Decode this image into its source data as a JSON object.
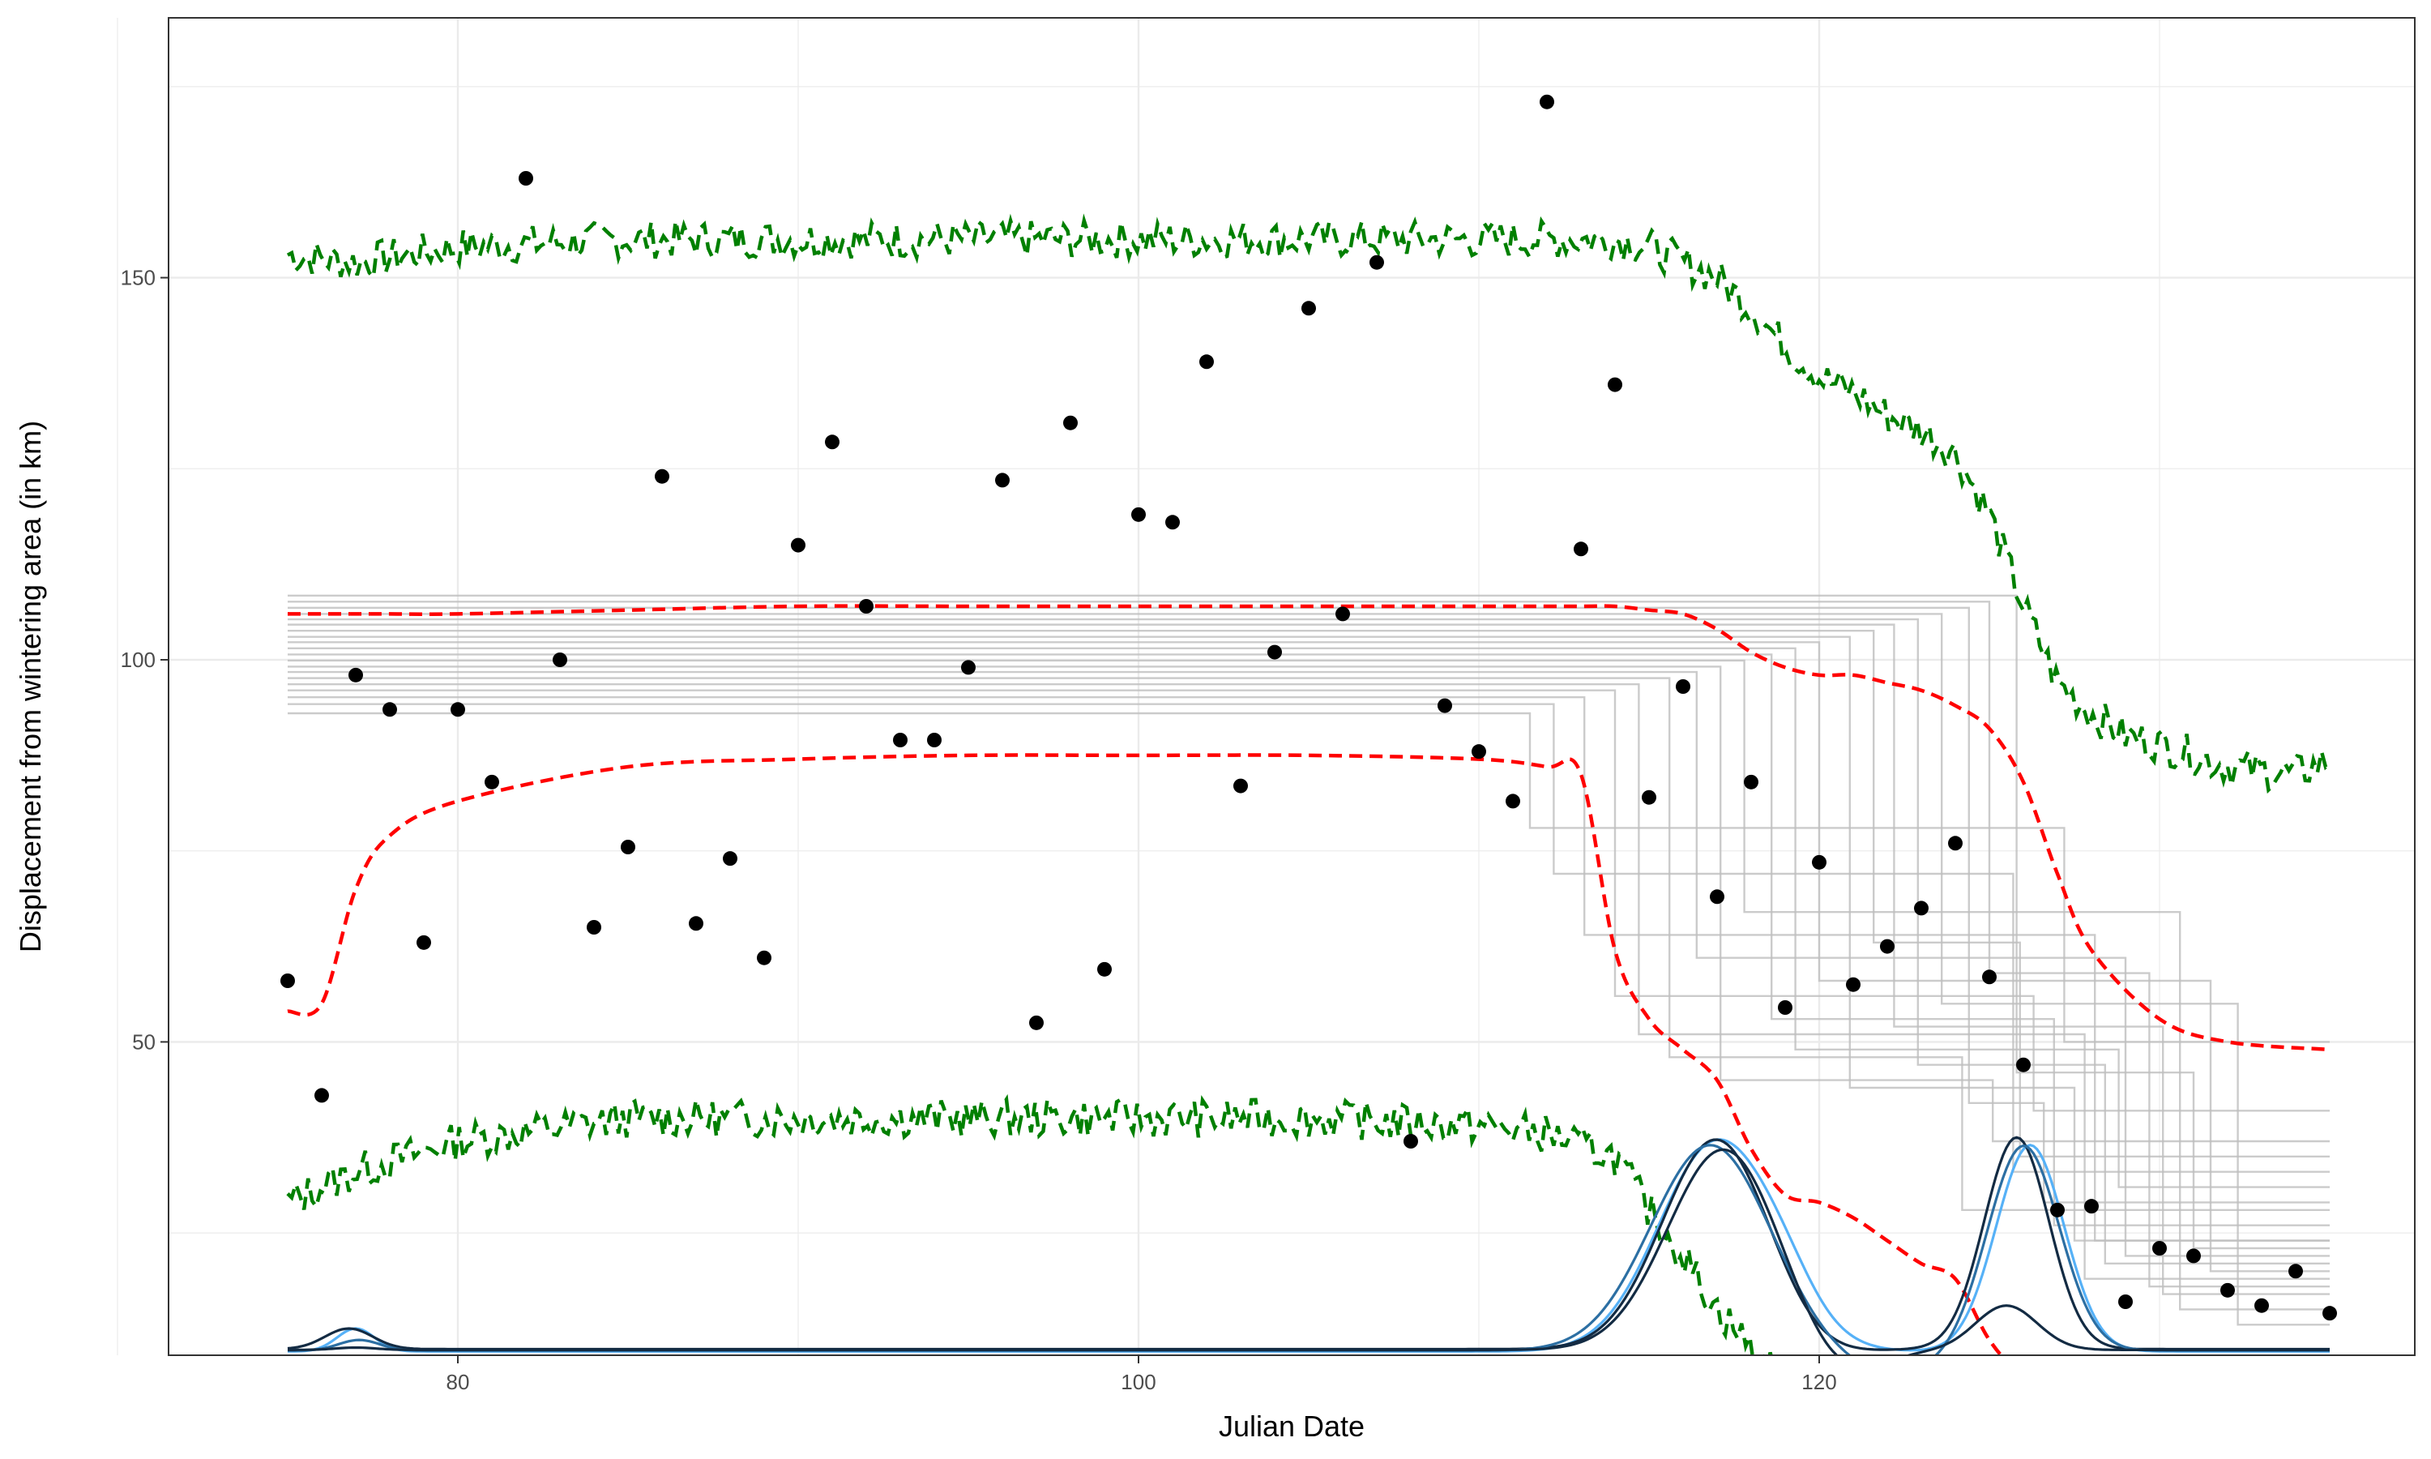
{
  "chart_data": {
    "type": "scatter",
    "xlabel": "Julian Date",
    "ylabel": "Displacement from wintering area (in km)",
    "xlim": [
      71.5,
      137.5
    ],
    "ylim": [
      9,
      184
    ],
    "x_major_ticks": [
      80,
      100,
      120
    ],
    "x_minor_ticks": [
      70,
      90,
      110,
      130
    ],
    "y_major_ticks": [
      50,
      100,
      150
    ],
    "y_minor_ticks": [
      25,
      75,
      125,
      175
    ],
    "grid": true,
    "legend": "none",
    "colors": {
      "points": "#000000",
      "inner_band": "#ff0000",
      "outer_band": "#008000",
      "step_lines": "#bebebe",
      "density_dark": "#132b43",
      "density_mid": "#2c6fa3",
      "density_light": "#56b1f7",
      "grid": "#ebebeb",
      "panel_border": "#333333"
    },
    "observations": {
      "x": [
        75,
        76,
        77,
        78,
        79,
        80,
        81,
        82,
        83,
        84,
        85,
        86,
        87,
        88,
        89,
        90,
        91,
        92,
        93,
        94,
        95,
        96,
        97,
        98,
        99,
        100,
        101,
        102,
        103,
        104,
        105,
        106,
        107,
        108,
        109,
        110,
        111,
        112,
        113,
        114,
        115,
        116,
        117,
        118,
        119,
        120,
        121,
        122,
        123,
        124,
        125,
        126,
        127,
        128,
        129,
        130,
        131,
        132,
        133,
        134,
        135
      ],
      "y": [
        58,
        43,
        98,
        93.5,
        63,
        93.5,
        84,
        163,
        100,
        65,
        75.5,
        124,
        65.5,
        74,
        61,
        115,
        128.5,
        107,
        89.5,
        89.5,
        99,
        123.5,
        52.5,
        131,
        59.5,
        119,
        118,
        139,
        83.5,
        101,
        146,
        106,
        152,
        37,
        94,
        88,
        81.5,
        173,
        114.5,
        136,
        82,
        96.5,
        69,
        84,
        54.5,
        73.5,
        57.5,
        62.5,
        67.5,
        76,
        58.5,
        47,
        28,
        28.5,
        16,
        23,
        22,
        17.5,
        15.5,
        20,
        14.5
      ]
    },
    "inner_band": {
      "x": [
        75,
        76,
        77,
        78,
        80,
        85,
        90,
        95,
        100,
        105,
        110,
        112,
        113,
        114,
        115,
        116,
        117,
        118,
        119,
        120,
        121,
        122,
        123,
        124,
        125,
        126,
        127,
        128,
        130,
        132,
        135
      ],
      "upper": [
        106,
        106,
        106,
        106,
        106,
        106.5,
        107,
        107,
        107,
        107,
        107,
        107,
        107,
        107,
        106.5,
        106,
        104,
        101,
        99,
        98,
        98,
        97,
        96,
        94,
        91,
        84,
        72,
        62,
        53,
        50,
        49
      ],
      "lower": [
        54,
        55,
        70,
        77,
        81.5,
        86,
        87,
        87.5,
        87.5,
        87.5,
        87,
        86,
        85,
        62,
        53,
        49,
        45,
        36,
        30,
        29,
        27,
        24,
        21,
        19,
        11,
        6,
        3,
        0,
        0,
        0,
        0
      ]
    },
    "outer_band": {
      "x": [
        75,
        77,
        80,
        85,
        90,
        95,
        100,
        105,
        110,
        112,
        114,
        115,
        116,
        117,
        118,
        119,
        120,
        121,
        122,
        123,
        124,
        125,
        126,
        127,
        128,
        129,
        130,
        132,
        134,
        135
      ],
      "upper": [
        153,
        152,
        154,
        155,
        155,
        155,
        155,
        155,
        155,
        155,
        155,
        154,
        152,
        150,
        146,
        141,
        137,
        135,
        132,
        130,
        127,
        119,
        107,
        97,
        93,
        90,
        89,
        86,
        85,
        87
      ],
      "lower": [
        29,
        33,
        37,
        40,
        40,
        40,
        40,
        40,
        39,
        38,
        35,
        28,
        22,
        15,
        10,
        5,
        2,
        0,
        0,
        0,
        0,
        0,
        0,
        0,
        0,
        0,
        0,
        0,
        0,
        0
      ]
    },
    "step_lines": [
      {
        "start": 93.0,
        "t1": 111.5,
        "v1": 78,
        "t2": 127.2,
        "v2": 50
      },
      {
        "start": 94.2,
        "t1": 112.2,
        "v1": 72,
        "t2": 125.7,
        "v2": 33
      },
      {
        "start": 95.1,
        "t1": 113.1,
        "v1": 64,
        "t2": 128.1,
        "v2": 24
      },
      {
        "start": 96.0,
        "t1": 114.0,
        "v1": 56,
        "t2": 126.3,
        "v2": 41
      },
      {
        "start": 96.8,
        "t1": 114.7,
        "v1": 51,
        "t2": 127.8,
        "v2": 19
      },
      {
        "start": 97.6,
        "t1": 115.6,
        "v1": 48,
        "t2": 124.2,
        "v2": 28
      },
      {
        "start": 98.4,
        "t1": 116.4,
        "v1": 61,
        "t2": 129.0,
        "v2": 22
      },
      {
        "start": 99.1,
        "t1": 117.1,
        "v1": 45,
        "t2": 125.1,
        "v2": 37
      },
      {
        "start": 99.9,
        "t1": 117.8,
        "v1": 67,
        "t2": 130.6,
        "v2": 15
      },
      {
        "start": 100.7,
        "t1": 118.6,
        "v1": 53,
        "t2": 126.9,
        "v2": 26
      },
      {
        "start": 101.5,
        "t1": 119.3,
        "v1": 49,
        "t2": 128.8,
        "v2": 31
      },
      {
        "start": 102.3,
        "t1": 120.0,
        "v1": 58,
        "t2": 131.5,
        "v2": 20
      },
      {
        "start": 103.0,
        "t1": 120.9,
        "v1": 44,
        "t2": 127.5,
        "v2": 24
      },
      {
        "start": 103.8,
        "t1": 121.6,
        "v1": 63,
        "t2": 125.9,
        "v2": 35
      },
      {
        "start": 104.6,
        "t1": 122.2,
        "v1": 52,
        "t2": 130.1,
        "v2": 17
      },
      {
        "start": 105.3,
        "t1": 122.9,
        "v1": 47,
        "t2": 128.4,
        "v2": 21
      },
      {
        "start": 106.0,
        "t1": 123.6,
        "v1": 55,
        "t2": 132.3,
        "v2": 13
      },
      {
        "start": 106.8,
        "t1": 124.4,
        "v1": 42,
        "t2": 126.6,
        "v2": 29
      },
      {
        "start": 107.6,
        "t1": 125.0,
        "v1": 59,
        "t2": 129.7,
        "v2": 18
      },
      {
        "start": 108.4,
        "t1": 125.8,
        "v1": 46,
        "t2": 131.0,
        "v2": 23
      }
    ],
    "density_curves": [
      {
        "shade": "light",
        "peaks": [
          [
            77.0,
            12.5,
            0.55
          ],
          [
            117.0,
            37.0,
            1.7
          ],
          [
            119.0,
            12.0,
            0.9
          ],
          [
            126.2,
            36.5,
            1.0
          ]
        ],
        "base": 9.5
      },
      {
        "shade": "dark",
        "peaks": [
          [
            76.8,
            12.5,
            0.7
          ],
          [
            117.0,
            37.5,
            1.6
          ],
          [
            119.5,
            8.0,
            1.3
          ],
          [
            125.8,
            37.5,
            0.95
          ]
        ],
        "base": 9.8
      },
      {
        "shade": "mid",
        "peaks": [
          [
            77.1,
            11.0,
            0.6
          ],
          [
            116.8,
            36.5,
            1.75
          ],
          [
            122.0,
            6.5,
            1.5
          ],
          [
            126.0,
            36.5,
            1.05
          ]
        ],
        "base": 9.6
      },
      {
        "shade": "dark",
        "peaks": [
          [
            77.0,
            10.0,
            0.6
          ],
          [
            117.2,
            36.0,
            1.65
          ],
          [
            120.5,
            5.5,
            1.2
          ],
          [
            125.5,
            15.5,
            0.9
          ]
        ],
        "base": 9.7
      }
    ]
  }
}
